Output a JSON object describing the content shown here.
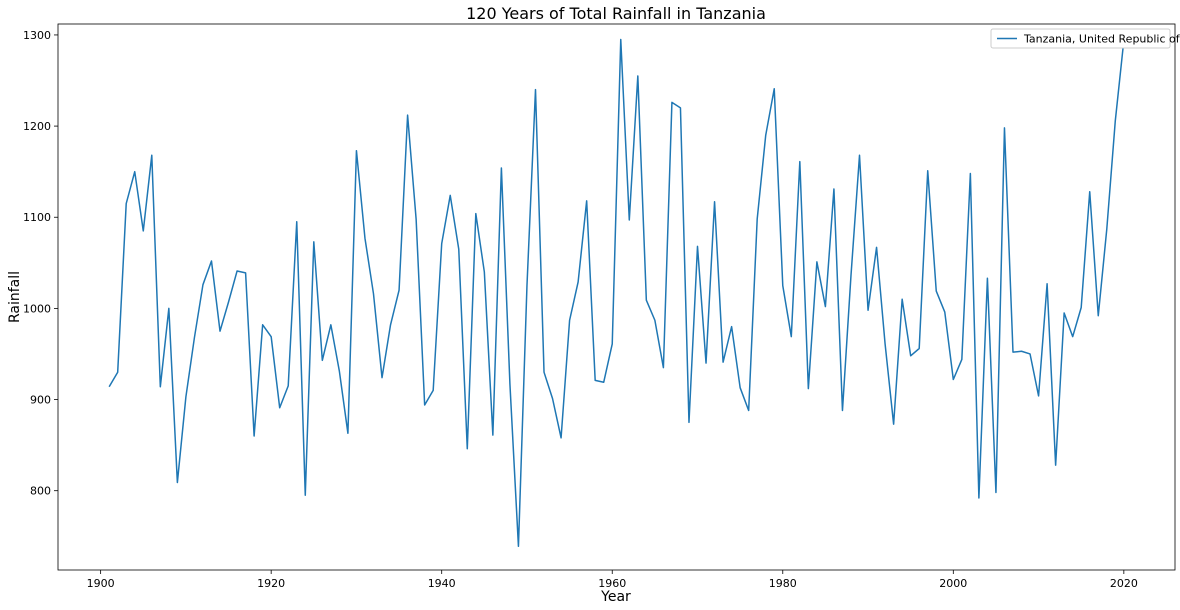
{
  "chart_data": {
    "type": "line",
    "title": "120 Years of Total Rainfall in Tanzania",
    "xlabel": "Year",
    "ylabel": "Rainfall",
    "xlim": [
      1895,
      2026
    ],
    "ylim": [
      713,
      1312
    ],
    "xticks": [
      1900,
      1920,
      1940,
      1960,
      1980,
      2000,
      2020
    ],
    "yticks": [
      800,
      900,
      1000,
      1100,
      1200,
      1300
    ],
    "grid": false,
    "legend_position": "top-right",
    "series": [
      {
        "name": "Tanzania, United Republic of",
        "color": "#1f77b4",
        "x": [
          1901,
          1902,
          1903,
          1904,
          1905,
          1906,
          1907,
          1908,
          1909,
          1910,
          1911,
          1912,
          1913,
          1914,
          1915,
          1916,
          1917,
          1918,
          1919,
          1920,
          1921,
          1922,
          1923,
          1924,
          1925,
          1926,
          1927,
          1928,
          1929,
          1930,
          1931,
          1932,
          1933,
          1934,
          1935,
          1936,
          1937,
          1938,
          1939,
          1940,
          1941,
          1942,
          1943,
          1944,
          1945,
          1946,
          1947,
          1948,
          1949,
          1950,
          1951,
          1952,
          1953,
          1954,
          1955,
          1956,
          1957,
          1958,
          1959,
          1960,
          1961,
          1962,
          1963,
          1964,
          1965,
          1966,
          1967,
          1968,
          1969,
          1970,
          1971,
          1972,
          1973,
          1974,
          1975,
          1976,
          1977,
          1978,
          1979,
          1980,
          1981,
          1982,
          1983,
          1984,
          1985,
          1986,
          1987,
          1988,
          1989,
          1990,
          1991,
          1992,
          1993,
          1994,
          1995,
          1996,
          1997,
          1998,
          1999,
          2000,
          2001,
          2002,
          2003,
          2004,
          2005,
          2006,
          2007,
          2008,
          2009,
          2010,
          2011,
          2012,
          2013,
          2014,
          2015,
          2016,
          2017,
          2018,
          2019,
          2020
        ],
        "y": [
          914,
          930,
          1115,
          1150,
          1085,
          1168,
          914,
          1000,
          809,
          903,
          968,
          1026,
          1052,
          975,
          1007,
          1041,
          1039,
          860,
          982,
          969,
          891,
          915,
          1095,
          795,
          1073,
          943,
          982,
          931,
          863,
          1173,
          1077,
          1016,
          924,
          982,
          1020,
          1212,
          1098,
          894,
          910,
          1071,
          1124,
          1065,
          846,
          1104,
          1040,
          861,
          1154,
          917,
          739,
          1025,
          1240,
          930,
          901,
          858,
          987,
          1029,
          1118,
          921,
          919,
          961,
          1295,
          1097,
          1255,
          1009,
          987,
          935,
          1226,
          1220,
          875,
          1068,
          940,
          1117,
          941,
          980,
          913,
          888,
          1098,
          1190,
          1241,
          1025,
          969,
          1161,
          912,
          1051,
          1002,
          1131,
          888,
          1036,
          1168,
          998,
          1067,
          961,
          873,
          1010,
          948,
          956,
          1151,
          1019,
          996,
          922,
          944,
          1148,
          792,
          1033,
          798,
          1198,
          952,
          953,
          950,
          904,
          1027,
          828,
          995,
          969,
          1001,
          1128,
          992,
          1087,
          1206,
          1294
        ]
      }
    ]
  }
}
